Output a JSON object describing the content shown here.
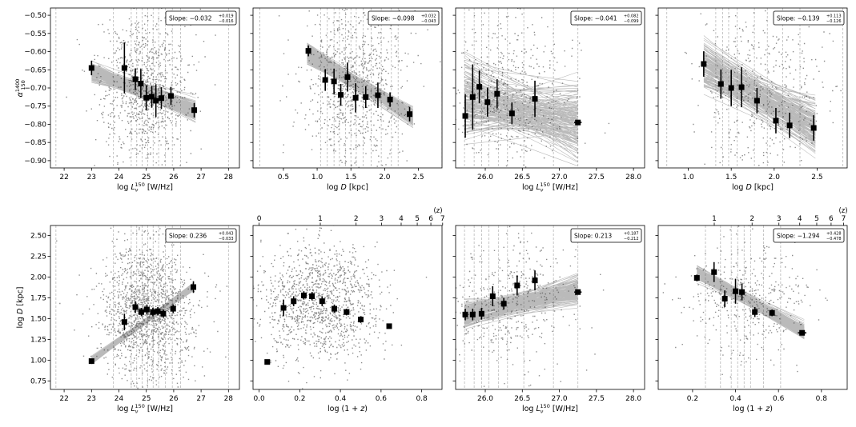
{
  "colors": {
    "scatter": "#8c8c8c",
    "band": "#3a3a3a",
    "binned": "#000000",
    "vline": "#b8b8b8",
    "frame": "#000000"
  },
  "chart_data": [
    {
      "type": "scatter",
      "panel": "top-1",
      "xlabel_main": "log ",
      "xlabel_sym": "L",
      "xlabel_sub": "ν",
      "xlabel_sup": "150",
      "xlabel_unit": " [W/Hz]",
      "ylabel_main": "α",
      "ylabel_sup": "1400",
      "ylabel_sub": "150",
      "xlim": [
        21.5,
        28.4
      ],
      "ylim": [
        -0.92,
        -0.48
      ],
      "xticks": [
        22,
        23,
        24,
        25,
        26,
        27,
        28
      ],
      "yticks": [
        -0.5,
        -0.55,
        -0.6,
        -0.65,
        -0.7,
        -0.75,
        -0.8,
        -0.85,
        -0.9
      ],
      "ytick_labels": [
        "−0.50",
        "−0.55",
        "−0.60",
        "−0.65",
        "−0.70",
        "−0.75",
        "−0.80",
        "−0.85",
        "−0.90"
      ],
      "slope": {
        "label": "Slope: ",
        "value": "−0.032",
        "plus": "+0.019",
        "minus": "−0.016"
      },
      "fit": {
        "x0": 23.0,
        "x1": 26.8,
        "y0": -0.655,
        "y1": -0.762,
        "sd": 0.013
      },
      "scatter": {
        "n": 900,
        "xc": 24.9,
        "xs": 0.85,
        "yc": -0.7,
        "ys": 0.11
      },
      "vlines": [
        21.7,
        23.8,
        24.45,
        24.65,
        24.85,
        25.05,
        25.25,
        25.45,
        25.7,
        25.95,
        26.25,
        28.0
      ],
      "points": [
        {
          "x": 23.0,
          "y": -0.645,
          "err": 0.02
        },
        {
          "x": 24.2,
          "y": -0.645,
          "err": 0.07
        },
        {
          "x": 24.6,
          "y": -0.676,
          "err": 0.03
        },
        {
          "x": 24.8,
          "y": -0.688,
          "err": 0.04
        },
        {
          "x": 25.0,
          "y": -0.727,
          "err": 0.035
        },
        {
          "x": 25.2,
          "y": -0.724,
          "err": 0.03
        },
        {
          "x": 25.35,
          "y": -0.735,
          "err": 0.045
        },
        {
          "x": 25.55,
          "y": -0.728,
          "err": 0.03
        },
        {
          "x": 25.9,
          "y": -0.722,
          "err": 0.025
        },
        {
          "x": 26.75,
          "y": -0.761,
          "err": 0.02
        }
      ]
    },
    {
      "type": "scatter",
      "panel": "top-2",
      "xlabel_main": "log ",
      "xlabel_sym": "D",
      "xlabel_unit": " [kpc]",
      "xlim": [
        0.05,
        2.85
      ],
      "ylim": [
        -0.92,
        -0.48
      ],
      "xticks": [
        0.5,
        1.0,
        1.5,
        2.0,
        2.5
      ],
      "xtick_labels": [
        "0.5",
        "1.0",
        "1.5",
        "2.0",
        "2.5"
      ],
      "slope": {
        "label": "Slope: ",
        "value": "−0.098",
        "plus": "+0.032",
        "minus": "−0.043"
      },
      "fit": {
        "x0": 0.85,
        "x1": 2.42,
        "y0": -0.605,
        "y1": -0.778,
        "sd": 0.013
      },
      "scatter": {
        "n": 800,
        "xc": 1.55,
        "xs": 0.38,
        "yc": -0.7,
        "ys": 0.11
      },
      "vlines": [
        0.15,
        1.05,
        1.15,
        1.25,
        1.33,
        1.42,
        1.5,
        1.58,
        1.68,
        1.8,
        1.95,
        2.1,
        2.2,
        2.85
      ],
      "points": [
        {
          "x": 0.87,
          "y": -0.598,
          "err": 0.015
        },
        {
          "x": 1.12,
          "y": -0.678,
          "err": 0.03
        },
        {
          "x": 1.25,
          "y": -0.682,
          "err": 0.035
        },
        {
          "x": 1.35,
          "y": -0.719,
          "err": 0.03
        },
        {
          "x": 1.45,
          "y": -0.67,
          "err": 0.04
        },
        {
          "x": 1.57,
          "y": -0.727,
          "err": 0.04
        },
        {
          "x": 1.72,
          "y": -0.725,
          "err": 0.03
        },
        {
          "x": 1.9,
          "y": -0.72,
          "err": 0.035
        },
        {
          "x": 2.08,
          "y": -0.732,
          "err": 0.02
        },
        {
          "x": 2.37,
          "y": -0.772,
          "err": 0.02
        }
      ]
    },
    {
      "type": "scatter",
      "panel": "top-3",
      "xlabel_main": "log ",
      "xlabel_sym": "L",
      "xlabel_sub": "ν",
      "xlabel_sup": "150",
      "xlabel_unit": " [W/Hz]",
      "xlim": [
        25.6,
        28.15
      ],
      "ylim": [
        -0.92,
        -0.48
      ],
      "xticks": [
        26.0,
        26.5,
        27.0,
        27.5,
        28.0
      ],
      "xtick_labels": [
        "26.0",
        "26.5",
        "27.0",
        "27.5",
        "28.0"
      ],
      "slope": {
        "label": "Slope: ",
        "value": "−0.041",
        "plus": "+0.082",
        "minus": "−0.099"
      },
      "fit": {
        "x0": 25.72,
        "x1": 27.25,
        "y0": -0.735,
        "y1": -0.795,
        "sd": 0.05
      },
      "scatter": {
        "n": 450,
        "xc": 26.3,
        "xs": 0.45,
        "yc": -0.72,
        "ys": 0.11
      },
      "vlines": [
        25.72,
        25.85,
        25.95,
        26.05,
        26.18,
        26.3,
        26.52,
        26.92,
        27.25
      ],
      "points": [
        {
          "x": 25.73,
          "y": -0.777,
          "err": 0.06
        },
        {
          "x": 25.83,
          "y": -0.725,
          "err": 0.09
        },
        {
          "x": 25.92,
          "y": -0.697,
          "err": 0.045
        },
        {
          "x": 26.03,
          "y": -0.739,
          "err": 0.04
        },
        {
          "x": 26.16,
          "y": -0.716,
          "err": 0.04
        },
        {
          "x": 26.36,
          "y": -0.77,
          "err": 0.03
        },
        {
          "x": 26.67,
          "y": -0.73,
          "err": 0.05
        },
        {
          "x": 27.25,
          "y": -0.795,
          "err": 0.003,
          "xerr": 0.05
        }
      ]
    },
    {
      "type": "scatter",
      "panel": "top-4",
      "xlabel_main": "log ",
      "xlabel_sym": "D",
      "xlabel_unit": " [kpc]",
      "xlim": [
        0.65,
        2.85
      ],
      "ylim": [
        -0.92,
        -0.48
      ],
      "xticks": [
        1.0,
        1.5,
        2.0,
        2.5
      ],
      "xtick_labels": [
        "1.0",
        "1.5",
        "2.0",
        "2.5"
      ],
      "slope": {
        "label": "Slope: ",
        "value": "−0.139",
        "plus": "+0.113",
        "minus": "−0.126"
      },
      "fit": {
        "x0": 1.18,
        "x1": 2.48,
        "y0": -0.64,
        "y1": -0.81,
        "sd": 0.035
      },
      "scatter": {
        "n": 380,
        "xc": 1.9,
        "xs": 0.4,
        "yc": -0.71,
        "ys": 0.11
      },
      "vlines": [
        0.75,
        1.32,
        1.4,
        1.47,
        1.57,
        1.77,
        1.92,
        2.1,
        2.3,
        2.8
      ],
      "points": [
        {
          "x": 1.18,
          "y": -0.634,
          "err": 0.035
        },
        {
          "x": 1.38,
          "y": -0.689,
          "err": 0.04
        },
        {
          "x": 1.5,
          "y": -0.7,
          "err": 0.05
        },
        {
          "x": 1.62,
          "y": -0.698,
          "err": 0.055
        },
        {
          "x": 1.8,
          "y": -0.735,
          "err": 0.035
        },
        {
          "x": 2.02,
          "y": -0.79,
          "err": 0.035
        },
        {
          "x": 2.18,
          "y": -0.803,
          "err": 0.035
        },
        {
          "x": 2.46,
          "y": -0.81,
          "err": 0.035
        }
      ]
    },
    {
      "type": "scatter",
      "panel": "bottom-1",
      "xlabel_main": "log ",
      "xlabel_sym": "L",
      "xlabel_sub": "ν",
      "xlabel_sup": "150",
      "xlabel_unit": " [W/Hz]",
      "ylabel_main": "log ",
      "ylabel_sym": "D",
      "ylabel_unit": " [kpc]",
      "xlim": [
        21.5,
        28.4
      ],
      "ylim": [
        0.65,
        2.62
      ],
      "xticks": [
        22,
        23,
        24,
        25,
        26,
        27,
        28
      ],
      "yticks": [
        0.75,
        1.0,
        1.25,
        1.5,
        1.75,
        2.0,
        2.25,
        2.5
      ],
      "ytick_labels": [
        "0.75",
        "1.00",
        "1.25",
        "1.50",
        "1.75",
        "2.00",
        "2.25",
        "2.50"
      ],
      "slope": {
        "label": "Slope: ",
        "value": "0.236",
        "plus": "+0.043",
        "minus": "−0.033"
      },
      "fit": {
        "x0": 23.0,
        "x1": 26.7,
        "y0": 1.0,
        "y1": 1.88,
        "sd": 0.02
      },
      "scatter": {
        "n": 1500,
        "xc": 25.0,
        "xs": 0.85,
        "yc": 1.6,
        "ys": 0.4
      },
      "vlines": [
        21.7,
        23.8,
        24.45,
        24.65,
        24.85,
        25.05,
        25.25,
        25.45,
        25.7,
        25.95,
        26.25,
        28.0
      ],
      "points": [
        {
          "x": 23.0,
          "y": 0.99,
          "err": 0.015
        },
        {
          "x": 24.2,
          "y": 1.46,
          "err": 0.1
        },
        {
          "x": 24.6,
          "y": 1.64,
          "err": 0.07
        },
        {
          "x": 24.82,
          "y": 1.58,
          "err": 0.05
        },
        {
          "x": 25.02,
          "y": 1.61,
          "err": 0.06
        },
        {
          "x": 25.24,
          "y": 1.58,
          "err": 0.05
        },
        {
          "x": 25.42,
          "y": 1.59,
          "err": 0.05
        },
        {
          "x": 25.62,
          "y": 1.56,
          "err": 0.05
        },
        {
          "x": 25.98,
          "y": 1.62,
          "err": 0.05
        },
        {
          "x": 26.72,
          "y": 1.88,
          "err": 0.07
        }
      ]
    },
    {
      "type": "scatter",
      "panel": "bottom-2",
      "xlabel_main": "log ",
      "xlabel_paren": "(1 + ",
      "xlabel_sym": "z",
      "xlabel_close": ")",
      "xlim": [
        -0.03,
        0.9
      ],
      "ylim": [
        0.65,
        2.62
      ],
      "xticks": [
        0.0,
        0.2,
        0.4,
        0.6,
        0.8
      ],
      "xtick_labels": [
        "0.0",
        "0.2",
        "0.4",
        "0.6",
        "0.8"
      ],
      "top_axis_label": "(z)",
      "top_ticks": [
        0,
        1,
        2,
        3,
        4,
        5,
        6,
        7
      ],
      "scatter": {
        "n": 1300,
        "xc": 0.3,
        "xs": 0.15,
        "yc": 1.7,
        "ys": 0.35
      },
      "vlines": [],
      "points": [
        {
          "x": 0.04,
          "y": 0.98,
          "err": 0.02
        },
        {
          "x": 0.12,
          "y": 1.63,
          "err": 0.1
        },
        {
          "x": 0.17,
          "y": 1.71,
          "err": 0.06
        },
        {
          "x": 0.22,
          "y": 1.78,
          "err": 0.05
        },
        {
          "x": 0.26,
          "y": 1.77,
          "err": 0.05
        },
        {
          "x": 0.31,
          "y": 1.71,
          "err": 0.06
        },
        {
          "x": 0.37,
          "y": 1.62,
          "err": 0.05
        },
        {
          "x": 0.43,
          "y": 1.58,
          "err": 0.04
        },
        {
          "x": 0.5,
          "y": 1.49,
          "err": 0.04
        },
        {
          "x": 0.64,
          "y": 1.41,
          "err": 0.03
        }
      ]
    },
    {
      "type": "scatter",
      "panel": "bottom-3",
      "xlabel_main": "log ",
      "xlabel_sym": "L",
      "xlabel_sub": "ν",
      "xlabel_sup": "150",
      "xlabel_unit": " [W/Hz]",
      "xlim": [
        25.6,
        28.15
      ],
      "ylim": [
        0.65,
        2.62
      ],
      "xticks": [
        26.0,
        26.5,
        27.0,
        27.5,
        28.0
      ],
      "xtick_labels": [
        "26.0",
        "26.5",
        "27.0",
        "27.5",
        "28.0"
      ],
      "slope": {
        "label": "Slope: ",
        "value": "0.213",
        "plus": "+0.187",
        "minus": "−0.212"
      },
      "fit": {
        "x0": 25.72,
        "x1": 27.25,
        "y0": 1.54,
        "y1": 1.84,
        "sd": 0.08
      },
      "scatter": {
        "n": 450,
        "xc": 26.3,
        "xs": 0.45,
        "yc": 1.7,
        "ys": 0.4
      },
      "vlines": [
        25.72,
        25.85,
        25.95,
        26.05,
        26.18,
        26.3,
        26.52,
        26.92,
        27.25
      ],
      "points": [
        {
          "x": 25.73,
          "y": 1.55,
          "err": 0.07
        },
        {
          "x": 25.83,
          "y": 1.55,
          "err": 0.07
        },
        {
          "x": 25.95,
          "y": 1.56,
          "err": 0.07
        },
        {
          "x": 26.1,
          "y": 1.77,
          "err": 0.12
        },
        {
          "x": 26.25,
          "y": 1.68,
          "err": 0.07
        },
        {
          "x": 26.43,
          "y": 1.9,
          "err": 0.12
        },
        {
          "x": 26.67,
          "y": 1.96,
          "err": 0.12
        },
        {
          "x": 27.25,
          "y": 1.82,
          "err": 0.03,
          "xerr": 0.05
        }
      ]
    },
    {
      "type": "scatter",
      "panel": "bottom-4",
      "xlabel_main": "log ",
      "xlabel_paren": "(1 + ",
      "xlabel_sym": "z",
      "xlabel_close": ")",
      "xlim": [
        0.04,
        0.92
      ],
      "ylim": [
        0.65,
        2.62
      ],
      "xticks": [
        0.2,
        0.4,
        0.6,
        0.8
      ],
      "xtick_labels": [
        "0.2",
        "0.4",
        "0.6",
        "0.8"
      ],
      "top_axis_label": "(z)",
      "top_ticks": [
        1,
        2,
        3,
        4,
        5,
        6,
        7
      ],
      "slope": {
        "label": "Slope: ",
        "value": "−1.294",
        "plus": "+0.428",
        "minus": "−0.478"
      },
      "fit": {
        "x0": 0.22,
        "x1": 0.72,
        "y0": 2.05,
        "y1": 1.35,
        "sd": 0.04
      },
      "scatter": {
        "n": 400,
        "xc": 0.45,
        "xs": 0.15,
        "yc": 1.75,
        "ys": 0.33
      },
      "vlines": [
        0.26,
        0.33,
        0.38,
        0.41,
        0.44,
        0.47,
        0.53,
        0.61
      ],
      "points": [
        {
          "x": 0.22,
          "y": 1.99,
          "err": 0.04
        },
        {
          "x": 0.3,
          "y": 2.06,
          "err": 0.12
        },
        {
          "x": 0.35,
          "y": 1.74,
          "err": 0.1
        },
        {
          "x": 0.4,
          "y": 1.83,
          "err": 0.15
        },
        {
          "x": 0.43,
          "y": 1.82,
          "err": 0.1
        },
        {
          "x": 0.49,
          "y": 1.58,
          "err": 0.06
        },
        {
          "x": 0.57,
          "y": 1.57,
          "err": 0.04
        },
        {
          "x": 0.71,
          "y": 1.33,
          "err": 0.03,
          "xerr": 0.02
        }
      ]
    }
  ]
}
